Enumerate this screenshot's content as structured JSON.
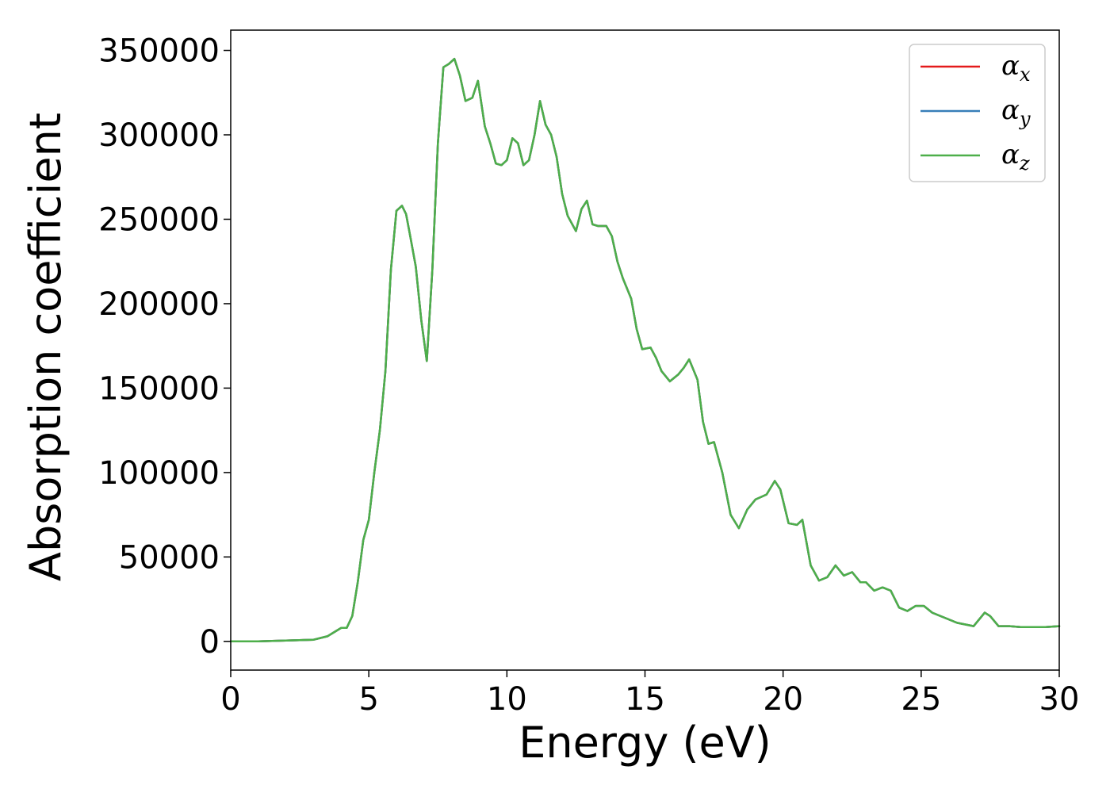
{
  "chart_data": {
    "type": "line",
    "title": "",
    "xlabel": "Energy (eV)",
    "ylabel": "Absorption coefficient",
    "xlim": [
      0,
      30
    ],
    "ylim": [
      -17000,
      362000
    ],
    "xticks": [
      0,
      5,
      10,
      15,
      20,
      25,
      30
    ],
    "yticks": [
      0,
      50000,
      100000,
      150000,
      200000,
      250000,
      300000,
      350000
    ],
    "grid": false,
    "legend_position": "top-right",
    "x": [
      0,
      1,
      2,
      3,
      3.5,
      3.8,
      4.0,
      4.2,
      4.4,
      4.6,
      4.8,
      5.0,
      5.2,
      5.4,
      5.6,
      5.8,
      6.0,
      6.2,
      6.35,
      6.5,
      6.7,
      6.9,
      7.1,
      7.3,
      7.5,
      7.7,
      7.9,
      8.1,
      8.3,
      8.5,
      8.75,
      8.95,
      9.2,
      9.4,
      9.6,
      9.8,
      10.0,
      10.2,
      10.4,
      10.6,
      10.8,
      11.0,
      11.2,
      11.4,
      11.6,
      11.8,
      12.0,
      12.2,
      12.5,
      12.7,
      12.9,
      13.1,
      13.3,
      13.6,
      13.8,
      14.0,
      14.2,
      14.5,
      14.7,
      14.9,
      15.2,
      15.4,
      15.6,
      15.9,
      16.2,
      16.4,
      16.6,
      16.9,
      17.1,
      17.3,
      17.5,
      17.8,
      18.1,
      18.4,
      18.7,
      19.0,
      19.4,
      19.7,
      19.9,
      20.2,
      20.5,
      20.7,
      21.0,
      21.3,
      21.6,
      21.9,
      22.2,
      22.5,
      22.8,
      23.0,
      23.3,
      23.6,
      23.9,
      24.2,
      24.5,
      24.8,
      25.1,
      25.4,
      25.7,
      26.0,
      26.3,
      26.6,
      26.9,
      27.1,
      27.3,
      27.5,
      27.8,
      28.2,
      28.6,
      29.0,
      29.5,
      30.0
    ],
    "series": [
      {
        "name": "α",
        "subscript": "x",
        "color": "#e41a1c",
        "y": [
          0,
          0,
          500,
          1000,
          3000,
          6000,
          8000,
          8000,
          15000,
          35000,
          60000,
          72000,
          100000,
          125000,
          160000,
          220000,
          255000,
          258000,
          253000,
          240000,
          222000,
          190000,
          166000,
          220000,
          295000,
          340000,
          342000,
          345000,
          335000,
          320000,
          322000,
          332000,
          305000,
          295000,
          283000,
          282000,
          285000,
          298000,
          295000,
          282000,
          285000,
          300000,
          320000,
          306000,
          300000,
          287000,
          265000,
          252000,
          243000,
          256000,
          261000,
          247000,
          246000,
          246000,
          240000,
          225000,
          215000,
          203000,
          185000,
          173000,
          174000,
          168000,
          160000,
          154000,
          158000,
          162000,
          167000,
          155000,
          130000,
          117000,
          118000,
          100000,
          75000,
          67000,
          78000,
          84000,
          87000,
          95000,
          90000,
          70000,
          69000,
          72000,
          45000,
          36000,
          38000,
          45000,
          39000,
          41000,
          35000,
          35000,
          30000,
          32000,
          30000,
          20000,
          18000,
          21000,
          21000,
          17000,
          15000,
          13000,
          11000,
          10000,
          9000,
          13000,
          17000,
          15000,
          9000,
          9000,
          8500,
          8500,
          8500,
          9000
        ]
      },
      {
        "name": "α",
        "subscript": "y",
        "color": "#377eb8",
        "y": [
          0,
          0,
          500,
          1000,
          3000,
          6000,
          8000,
          8000,
          15000,
          35000,
          60000,
          72000,
          100000,
          125000,
          160000,
          220000,
          255000,
          258000,
          253000,
          240000,
          222000,
          190000,
          166000,
          220000,
          295000,
          340000,
          342000,
          345000,
          335000,
          320000,
          322000,
          332000,
          305000,
          295000,
          283000,
          282000,
          285000,
          298000,
          295000,
          282000,
          285000,
          300000,
          320000,
          306000,
          300000,
          287000,
          265000,
          252000,
          243000,
          256000,
          261000,
          247000,
          246000,
          246000,
          240000,
          225000,
          215000,
          203000,
          185000,
          173000,
          174000,
          168000,
          160000,
          154000,
          158000,
          162000,
          167000,
          155000,
          130000,
          117000,
          118000,
          100000,
          75000,
          67000,
          78000,
          84000,
          87000,
          95000,
          90000,
          70000,
          69000,
          72000,
          45000,
          36000,
          38000,
          45000,
          39000,
          41000,
          35000,
          35000,
          30000,
          32000,
          30000,
          20000,
          18000,
          21000,
          21000,
          17000,
          15000,
          13000,
          11000,
          10000,
          9000,
          13000,
          17000,
          15000,
          9000,
          9000,
          8500,
          8500,
          8500,
          9000
        ]
      },
      {
        "name": "α",
        "subscript": "z",
        "color": "#4daf4a",
        "y": [
          0,
          0,
          500,
          1000,
          3000,
          6000,
          8000,
          8000,
          15000,
          35000,
          60000,
          72000,
          100000,
          125000,
          160000,
          220000,
          255000,
          258000,
          253000,
          240000,
          222000,
          190000,
          166000,
          220000,
          295000,
          340000,
          342000,
          345000,
          335000,
          320000,
          322000,
          332000,
          305000,
          295000,
          283000,
          282000,
          285000,
          298000,
          295000,
          282000,
          285000,
          300000,
          320000,
          306000,
          300000,
          287000,
          265000,
          252000,
          243000,
          256000,
          261000,
          247000,
          246000,
          246000,
          240000,
          225000,
          215000,
          203000,
          185000,
          173000,
          174000,
          168000,
          160000,
          154000,
          158000,
          162000,
          167000,
          155000,
          130000,
          117000,
          118000,
          100000,
          75000,
          67000,
          78000,
          84000,
          87000,
          95000,
          90000,
          70000,
          69000,
          72000,
          45000,
          36000,
          38000,
          45000,
          39000,
          41000,
          35000,
          35000,
          30000,
          32000,
          30000,
          20000,
          18000,
          21000,
          21000,
          17000,
          15000,
          13000,
          11000,
          10000,
          9000,
          13000,
          17000,
          15000,
          9000,
          9000,
          8500,
          8500,
          8500,
          9000
        ]
      }
    ]
  }
}
